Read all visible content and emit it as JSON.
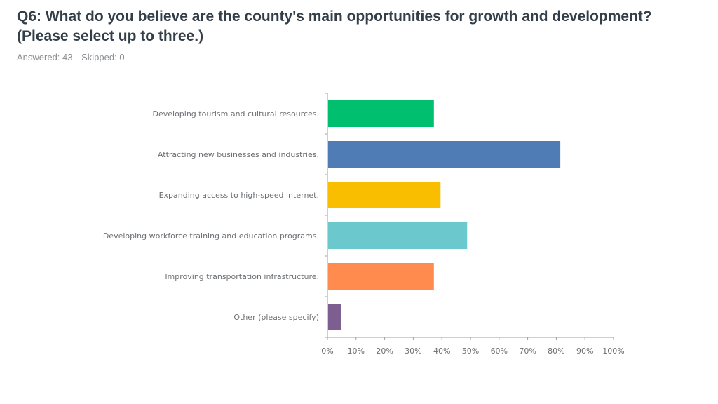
{
  "question": {
    "title": "Q6: What do you believe are the county's main opportunities for growth and development? (Please select up to three.)",
    "answered": "Answered: 43",
    "skipped": "Skipped: 0"
  },
  "chart_data": {
    "type": "bar",
    "orientation": "horizontal",
    "categories": [
      "Developing tourism and cultural resources.",
      "Attracting new businesses and industries.",
      "Expanding access to high-speed internet.",
      "Developing workforce training and education programs.",
      "Improving transportation infrastructure.",
      "Other (please specify)"
    ],
    "values": [
      37.21,
      81.4,
      39.53,
      48.84,
      37.21,
      4.65
    ],
    "colors": [
      "#00bf6f",
      "#507cb6",
      "#f9be00",
      "#6bc8cd",
      "#ff8b4f",
      "#7d5e90"
    ],
    "xlim": [
      0,
      100
    ],
    "xticks": [
      "0%",
      "10%",
      "20%",
      "30%",
      "40%",
      "50%",
      "60%",
      "70%",
      "80%",
      "90%",
      "100%"
    ],
    "grid": false
  }
}
